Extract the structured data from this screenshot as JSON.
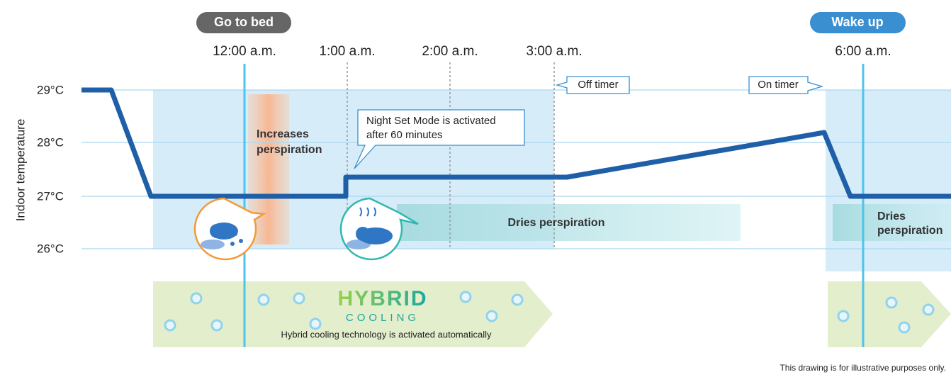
{
  "events": {
    "bedtime": "Go to bed",
    "wake": "Wake up"
  },
  "times": [
    "12:00 a.m.",
    "1:00 a.m.",
    "2:00 a.m.",
    "3:00 a.m.",
    "6:00 a.m."
  ],
  "y_axis": {
    "label": "Indoor temperature",
    "ticks": [
      "29°C",
      "28°C",
      "27°C",
      "26°C"
    ]
  },
  "callouts": {
    "off_timer": "Off timer",
    "on_timer": "On timer",
    "night_set": [
      "Night Set Mode is activated",
      "after 60 minutes"
    ]
  },
  "labels": {
    "increases": [
      "Increases",
      "perspiration"
    ],
    "dries": "Dries perspiration",
    "dries_right": [
      "Dries",
      "perspiration"
    ]
  },
  "hybrid": {
    "logo_top": "HYBRID",
    "logo_bottom": "COOLING",
    "caption": "Hybrid cooling technology is activated automatically"
  },
  "footnote": "This drawing is for illustrative purposes only."
}
